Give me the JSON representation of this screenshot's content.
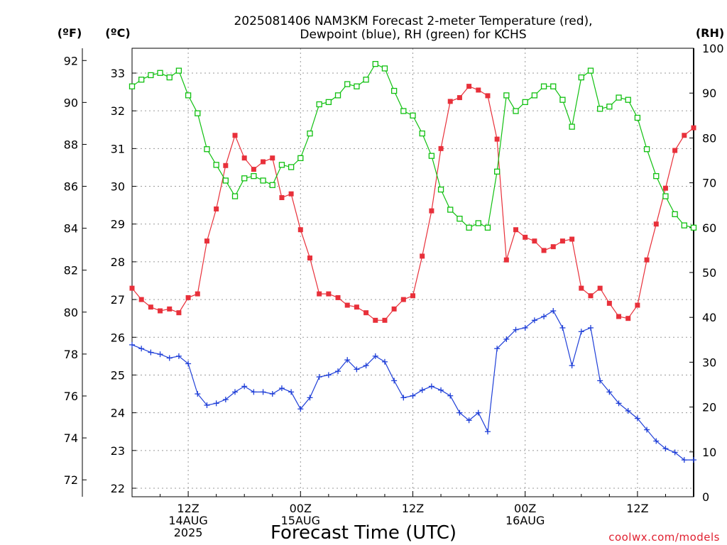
{
  "chart_data": {
    "type": "line",
    "title_line1": "2025081406 NAM3KM Forecast 2-meter Temperature (red),",
    "title_line2": "Dewpoint (blue), RH (green) for KCHS",
    "xlabel": "Forecast Time (UTC)",
    "credit": "coolwx.com/models",
    "unit_labels": {
      "f": "(ºF)",
      "c": "(ºC)",
      "rh": "(RH)"
    },
    "x_ticks": [
      {
        "hour": 6,
        "lines": [
          "12Z",
          "14AUG",
          "2025"
        ]
      },
      {
        "hour": 18,
        "lines": [
          "00Z",
          "15AUG"
        ]
      },
      {
        "hour": 30,
        "lines": [
          "12Z"
        ]
      },
      {
        "hour": 42,
        "lines": [
          "00Z",
          "16AUG"
        ]
      },
      {
        "hour": 54,
        "lines": [
          "12Z"
        ]
      }
    ],
    "x_range": [
      0,
      60
    ],
    "f_ticks": [
      72,
      74,
      76,
      78,
      80,
      82,
      84,
      86,
      88,
      90,
      92
    ],
    "c_ticks": [
      22,
      23,
      24,
      25,
      26,
      27,
      28,
      29,
      30,
      31,
      32,
      33
    ],
    "rh_ticks": [
      0,
      10,
      20,
      30,
      40,
      50,
      60,
      70,
      80,
      90,
      100
    ],
    "c_range": [
      21.7,
      33.9
    ],
    "rh_range": [
      0,
      100
    ],
    "grid": true,
    "colors": {
      "temperature": "#e8303a",
      "dewpoint": "#1f3fd8",
      "rh": "#10c010"
    },
    "series": [
      {
        "name": "Temperature (red)",
        "axis": "celsius",
        "marker": "filled-square",
        "x": [
          0,
          1,
          2,
          3,
          4,
          5,
          6,
          7,
          8,
          9,
          10,
          11,
          12,
          13,
          14,
          15,
          16,
          17,
          18,
          19,
          20,
          21,
          22,
          23,
          24,
          25,
          26,
          27,
          28,
          29,
          30,
          31,
          32,
          33,
          34,
          35,
          36,
          37,
          38,
          39,
          40,
          41,
          42,
          43,
          44,
          45,
          46,
          47,
          48,
          49,
          50,
          51,
          52,
          53,
          54,
          55,
          56,
          57,
          58,
          59,
          60
        ],
        "values": [
          27.3,
          27.0,
          26.8,
          26.7,
          26.75,
          26.65,
          27.05,
          27.15,
          28.55,
          29.4,
          30.55,
          31.35,
          30.75,
          30.45,
          30.65,
          30.75,
          29.7,
          29.8,
          28.85,
          28.1,
          27.15,
          27.15,
          27.05,
          26.85,
          26.8,
          26.65,
          26.45,
          26.45,
          26.75,
          27.0,
          27.1,
          28.15,
          29.35,
          31.0,
          32.25,
          32.35,
          32.65,
          32.55,
          32.4,
          31.25,
          28.05,
          28.85,
          28.65,
          28.55,
          28.3,
          28.4,
          28.55,
          28.6,
          27.3,
          27.1,
          27.3,
          26.9,
          26.55,
          26.5,
          26.85,
          28.05,
          29.0,
          29.95,
          30.95,
          31.35,
          31.55
        ]
      },
      {
        "name": "Dewpoint (blue)",
        "axis": "celsius",
        "marker": "plus",
        "x": [
          0,
          1,
          2,
          3,
          4,
          5,
          6,
          7,
          8,
          9,
          10,
          11,
          12,
          13,
          14,
          15,
          16,
          17,
          18,
          19,
          20,
          21,
          22,
          23,
          24,
          25,
          26,
          27,
          28,
          29,
          30,
          31,
          32,
          33,
          34,
          35,
          36,
          37,
          38,
          39,
          40,
          41,
          42,
          43,
          44,
          45,
          46,
          47,
          48,
          49,
          50,
          51,
          52,
          53,
          54,
          55,
          56,
          57,
          58,
          59,
          60
        ],
        "values": [
          25.8,
          25.7,
          25.6,
          25.55,
          25.45,
          25.5,
          25.3,
          24.5,
          24.2,
          24.25,
          24.35,
          24.55,
          24.7,
          24.55,
          24.55,
          24.5,
          24.65,
          24.55,
          24.1,
          24.4,
          24.95,
          25.0,
          25.1,
          25.4,
          25.15,
          25.25,
          25.5,
          25.35,
          24.85,
          24.4,
          24.45,
          24.6,
          24.7,
          24.6,
          24.45,
          24.0,
          23.8,
          24.0,
          23.5,
          25.7,
          25.95,
          26.2,
          26.25,
          26.45,
          26.55,
          26.7,
          26.25,
          25.25,
          26.15,
          26.25,
          24.85,
          24.55,
          24.25,
          24.05,
          23.85,
          23.55,
          23.25,
          23.05,
          22.95,
          22.75,
          22.75
        ]
      },
      {
        "name": "RH (green)",
        "axis": "rh",
        "marker": "open-square",
        "x": [
          0,
          1,
          2,
          3,
          4,
          5,
          6,
          7,
          8,
          9,
          10,
          11,
          12,
          13,
          14,
          15,
          16,
          17,
          18,
          19,
          20,
          21,
          22,
          23,
          24,
          25,
          26,
          27,
          28,
          29,
          30,
          31,
          32,
          33,
          34,
          35,
          36,
          37,
          38,
          39,
          40,
          41,
          42,
          43,
          44,
          45,
          46,
          47,
          48,
          49,
          50,
          51,
          52,
          53,
          54,
          55,
          56,
          57,
          58,
          59,
          60
        ],
        "values": [
          91.5,
          93,
          94,
          94.5,
          93.5,
          95,
          89.5,
          85.5,
          77.5,
          74,
          70.5,
          67,
          71,
          71.5,
          70.5,
          69.5,
          74,
          73.5,
          75.5,
          81,
          87.5,
          88,
          89.5,
          92,
          91.5,
          93,
          96.5,
          95.5,
          90.5,
          86,
          85,
          81,
          76,
          68.5,
          64,
          62,
          60,
          61,
          60,
          72.5,
          89.5,
          86,
          88,
          89.5,
          91.5,
          91.5,
          88.5,
          82.5,
          93.5,
          95,
          86.5,
          87,
          89,
          88.5,
          84.5,
          77.5,
          71.5,
          67,
          63,
          60.5,
          60
        ]
      }
    ]
  }
}
